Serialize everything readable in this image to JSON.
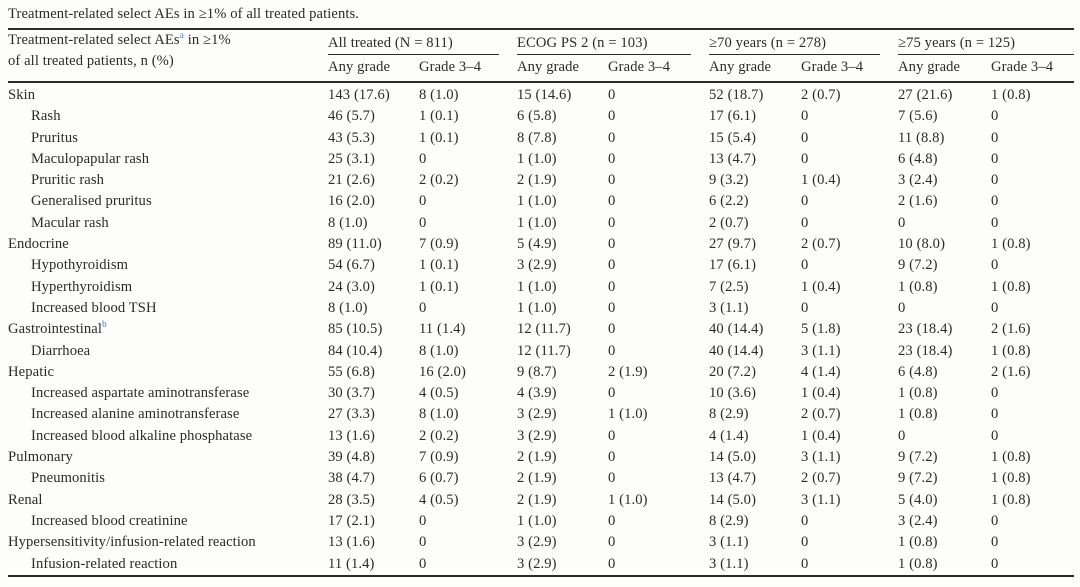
{
  "title": "Treatment-related select AEs in ≥1% of all treated patients.",
  "table": {
    "row_header": {
      "text1": "Treatment-related select AEs",
      "sup": "a",
      "text2": " in ≥1%",
      "line2": "of all treated patients, n (%)"
    },
    "groups": [
      {
        "label": "All treated (N = 811)"
      },
      {
        "label": "ECOG PS 2 (n = 103)"
      },
      {
        "label": "≥70 years (n = 278)"
      },
      {
        "label": "≥75 years (n = 125)"
      }
    ],
    "subheaders": [
      "Any grade",
      "Grade 3–4"
    ],
    "rows": [
      {
        "label": "Skin",
        "indent": false,
        "sup": "",
        "values": [
          "143 (17.6)",
          "8 (1.0)",
          "15 (14.6)",
          "0",
          "52 (18.7)",
          "2 (0.7)",
          "27 (21.6)",
          "1 (0.8)"
        ]
      },
      {
        "label": "Rash",
        "indent": true,
        "sup": "",
        "values": [
          "46 (5.7)",
          "1 (0.1)",
          "6 (5.8)",
          "0",
          "17 (6.1)",
          "0",
          "7 (5.6)",
          "0"
        ]
      },
      {
        "label": "Pruritus",
        "indent": true,
        "sup": "",
        "values": [
          "43 (5.3)",
          "1 (0.1)",
          "8 (7.8)",
          "0",
          "15 (5.4)",
          "0",
          "11 (8.8)",
          "0"
        ]
      },
      {
        "label": "Maculopapular rash",
        "indent": true,
        "sup": "",
        "values": [
          "25 (3.1)",
          "0",
          "1 (1.0)",
          "0",
          "13 (4.7)",
          "0",
          "6 (4.8)",
          "0"
        ]
      },
      {
        "label": "Pruritic rash",
        "indent": true,
        "sup": "",
        "values": [
          "21 (2.6)",
          "2 (0.2)",
          "2 (1.9)",
          "0",
          "9 (3.2)",
          "1 (0.4)",
          "3 (2.4)",
          "0"
        ]
      },
      {
        "label": "Generalised pruritus",
        "indent": true,
        "sup": "",
        "values": [
          "16 (2.0)",
          "0",
          "1 (1.0)",
          "0",
          "6 (2.2)",
          "0",
          "2 (1.6)",
          "0"
        ]
      },
      {
        "label": "Macular rash",
        "indent": true,
        "sup": "",
        "values": [
          "8 (1.0)",
          "0",
          "1 (1.0)",
          "0",
          "2 (0.7)",
          "0",
          "0",
          "0"
        ]
      },
      {
        "label": "Endocrine",
        "indent": false,
        "sup": "",
        "values": [
          "89 (11.0)",
          "7 (0.9)",
          "5 (4.9)",
          "0",
          "27 (9.7)",
          "2 (0.7)",
          "10 (8.0)",
          "1 (0.8)"
        ]
      },
      {
        "label": "Hypothyroidism",
        "indent": true,
        "sup": "",
        "values": [
          "54 (6.7)",
          "1 (0.1)",
          "3 (2.9)",
          "0",
          "17 (6.1)",
          "0",
          "9 (7.2)",
          "0"
        ]
      },
      {
        "label": "Hyperthyroidism",
        "indent": true,
        "sup": "",
        "values": [
          "24 (3.0)",
          "1 (0.1)",
          "1 (1.0)",
          "0",
          "7 (2.5)",
          "1 (0.4)",
          "1 (0.8)",
          "1 (0.8)"
        ]
      },
      {
        "label": "Increased blood TSH",
        "indent": true,
        "sup": "",
        "values": [
          "8 (1.0)",
          "0",
          "1 (1.0)",
          "0",
          "3 (1.1)",
          "0",
          "0",
          "0"
        ]
      },
      {
        "label": "Gastrointestinal",
        "indent": false,
        "sup": "b",
        "values": [
          "85 (10.5)",
          "11 (1.4)",
          "12 (11.7)",
          "0",
          "40 (14.4)",
          "5 (1.8)",
          "23 (18.4)",
          "2 (1.6)"
        ]
      },
      {
        "label": "Diarrhoea",
        "indent": true,
        "sup": "",
        "values": [
          "84 (10.4)",
          "8 (1.0)",
          "12 (11.7)",
          "0",
          "40 (14.4)",
          "3 (1.1)",
          "23 (18.4)",
          "1 (0.8)"
        ]
      },
      {
        "label": "Hepatic",
        "indent": false,
        "sup": "",
        "values": [
          "55 (6.8)",
          "16 (2.0)",
          "9 (8.7)",
          "2 (1.9)",
          "20 (7.2)",
          "4 (1.4)",
          "6 (4.8)",
          "2 (1.6)"
        ]
      },
      {
        "label": "Increased aspartate aminotransferase",
        "indent": true,
        "sup": "",
        "values": [
          "30 (3.7)",
          "4 (0.5)",
          "4 (3.9)",
          "0",
          "10 (3.6)",
          "1 (0.4)",
          "1 (0.8)",
          "0"
        ]
      },
      {
        "label": "Increased alanine aminotransferase",
        "indent": true,
        "sup": "",
        "values": [
          "27 (3.3)",
          "8 (1.0)",
          "3 (2.9)",
          "1 (1.0)",
          "8 (2.9)",
          "2 (0.7)",
          "1 (0.8)",
          "0"
        ]
      },
      {
        "label": "Increased blood alkaline phosphatase",
        "indent": true,
        "sup": "",
        "values": [
          "13 (1.6)",
          "2 (0.2)",
          "3 (2.9)",
          "0",
          "4 (1.4)",
          "1 (0.4)",
          "0",
          "0"
        ]
      },
      {
        "label": "Pulmonary",
        "indent": false,
        "sup": "",
        "values": [
          "39 (4.8)",
          "7 (0.9)",
          "2 (1.9)",
          "0",
          "14 (5.0)",
          "3 (1.1)",
          "9 (7.2)",
          "1 (0.8)"
        ]
      },
      {
        "label": "Pneumonitis",
        "indent": true,
        "sup": "",
        "values": [
          "38 (4.7)",
          "6 (0.7)",
          "2 (1.9)",
          "0",
          "13 (4.7)",
          "2 (0.7)",
          "9 (7.2)",
          "1 (0.8)"
        ]
      },
      {
        "label": "Renal",
        "indent": false,
        "sup": "",
        "values": [
          "28 (3.5)",
          "4 (0.5)",
          "2 (1.9)",
          "1 (1.0)",
          "14 (5.0)",
          "3 (1.1)",
          "5 (4.0)",
          "1 (0.8)"
        ]
      },
      {
        "label": "Increased blood creatinine",
        "indent": true,
        "sup": "",
        "values": [
          "17 (2.1)",
          "0",
          "1 (1.0)",
          "0",
          "8 (2.9)",
          "0",
          "3 (2.4)",
          "0"
        ]
      },
      {
        "label": "Hypersensitivity/infusion-related reaction",
        "indent": false,
        "sup": "",
        "values": [
          "13 (1.6)",
          "0",
          "3 (2.9)",
          "0",
          "3 (1.1)",
          "0",
          "1 (0.8)",
          "0"
        ]
      },
      {
        "label": "Infusion-related reaction",
        "indent": true,
        "sup": "",
        "values": [
          "11 (1.4)",
          "0",
          "3 (2.9)",
          "0",
          "3 (1.1)",
          "0",
          "1 (0.8)",
          "0"
        ]
      }
    ],
    "colors": {
      "text": "#2b2b2b",
      "footnote_link": "#4a7ab5",
      "rule": "#2c2c2c"
    }
  }
}
